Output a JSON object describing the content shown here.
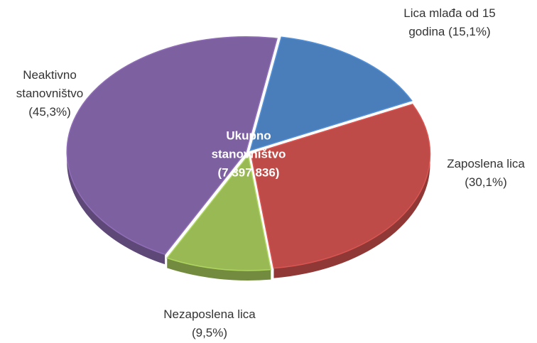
{
  "chart_data": {
    "type": "pie",
    "center_label": [
      "Ukupno",
      "stanovništvo",
      "(7 397 836)"
    ],
    "categories": [
      "Lica mlađa od 15 godina",
      "Zaposlena lica",
      "Nezaposlena lica",
      "Neaktivno stanovništvo"
    ],
    "values": [
      15.1,
      30.1,
      9.5,
      45.3
    ],
    "value_labels": [
      "(15,1%)",
      "(30,1%)",
      "(9,5%)",
      "(45,3%)"
    ],
    "colors": [
      "#4a7ebb",
      "#be4b48",
      "#98b954",
      "#7d60a0"
    ]
  }
}
